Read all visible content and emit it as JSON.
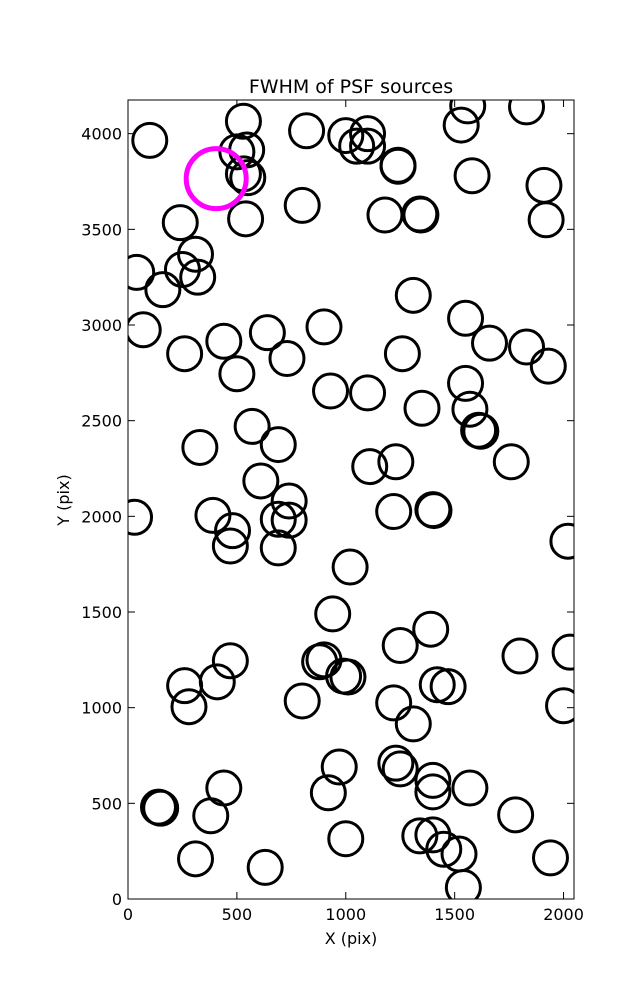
{
  "chart_data": {
    "type": "scatter",
    "title": "FWHM of PSF sources",
    "xlabel": "X (pix)",
    "ylabel": "Y (pix)",
    "xlim": [
      0,
      2048
    ],
    "ylim": [
      0,
      4176
    ],
    "xticks": [
      "0",
      "500",
      "1000",
      "1500",
      "2000"
    ],
    "yticks": [
      "0",
      "500",
      "1000",
      "1500",
      "2000",
      "2500",
      "3000",
      "3500",
      "4000"
    ],
    "grid": false,
    "colors": {
      "sources": "#000000",
      "highlight": "#ff00ff"
    },
    "highlight": {
      "x": 405,
      "y": 3765
    },
    "sources": [
      [
        100,
        3965
      ],
      [
        530,
        4065
      ],
      [
        500,
        3905
      ],
      [
        545,
        3915
      ],
      [
        530,
        3790
      ],
      [
        550,
        3770
      ],
      [
        540,
        3555
      ],
      [
        820,
        4015
      ],
      [
        800,
        3625
      ],
      [
        1000,
        3990
      ],
      [
        1100,
        4000
      ],
      [
        1050,
        3935
      ],
      [
        1100,
        3935
      ],
      [
        1240,
        3835
      ],
      [
        1240,
        3830
      ],
      [
        1180,
        3575
      ],
      [
        1340,
        3580
      ],
      [
        1345,
        3575
      ],
      [
        1560,
        4145
      ],
      [
        1530,
        4045
      ],
      [
        1580,
        3780
      ],
      [
        1830,
        4140
      ],
      [
        1910,
        3730
      ],
      [
        1920,
        3550
      ],
      [
        240,
        3535
      ],
      [
        310,
        3370
      ],
      [
        250,
        3290
      ],
      [
        320,
        3250
      ],
      [
        160,
        3185
      ],
      [
        40,
        3275
      ],
      [
        70,
        2975
      ],
      [
        260,
        2850
      ],
      [
        440,
        2915
      ],
      [
        500,
        2745
      ],
      [
        640,
        2960
      ],
      [
        730,
        2825
      ],
      [
        900,
        2990
      ],
      [
        930,
        2655
      ],
      [
        1100,
        2645
      ],
      [
        1260,
        2850
      ],
      [
        1310,
        3155
      ],
      [
        1550,
        3035
      ],
      [
        1660,
        2905
      ],
      [
        1830,
        2885
      ],
      [
        1930,
        2785
      ],
      [
        1550,
        2695
      ],
      [
        1570,
        2560
      ],
      [
        1610,
        2450
      ],
      [
        1620,
        2445
      ],
      [
        1350,
        2565
      ],
      [
        330,
        2360
      ],
      [
        570,
        2470
      ],
      [
        690,
        2375
      ],
      [
        610,
        2185
      ],
      [
        740,
        2080
      ],
      [
        390,
        2005
      ],
      [
        480,
        1925
      ],
      [
        470,
        1845
      ],
      [
        690,
        1985
      ],
      [
        740,
        1980
      ],
      [
        690,
        1835
      ],
      [
        1110,
        2260
      ],
      [
        1230,
        2285
      ],
      [
        1220,
        2025
      ],
      [
        1400,
        2035
      ],
      [
        1405,
        2030
      ],
      [
        1760,
        2285
      ],
      [
        30,
        1995
      ],
      [
        2020,
        1870
      ],
      [
        1020,
        1735
      ],
      [
        940,
        1490
      ],
      [
        1250,
        1325
      ],
      [
        1390,
        1410
      ],
      [
        880,
        1240
      ],
      [
        900,
        1250
      ],
      [
        990,
        1165
      ],
      [
        1010,
        1160
      ],
      [
        800,
        1035
      ],
      [
        1220,
        1025
      ],
      [
        1310,
        915
      ],
      [
        1420,
        1120
      ],
      [
        1470,
        1110
      ],
      [
        1800,
        1270
      ],
      [
        2030,
        1290
      ],
      [
        2000,
        1010
      ],
      [
        470,
        1245
      ],
      [
        410,
        1135
      ],
      [
        260,
        1115
      ],
      [
        280,
        1005
      ],
      [
        970,
        690
      ],
      [
        920,
        555
      ],
      [
        1000,
        315
      ],
      [
        1230,
        710
      ],
      [
        1250,
        680
      ],
      [
        1400,
        620
      ],
      [
        1400,
        560
      ],
      [
        1570,
        580
      ],
      [
        1340,
        330
      ],
      [
        1400,
        335
      ],
      [
        1450,
        260
      ],
      [
        1520,
        235
      ],
      [
        1540,
        60
      ],
      [
        1780,
        440
      ],
      [
        1940,
        215
      ],
      [
        140,
        480
      ],
      [
        150,
        475
      ],
      [
        440,
        580
      ],
      [
        380,
        435
      ],
      [
        310,
        210
      ],
      [
        630,
        165
      ]
    ]
  }
}
